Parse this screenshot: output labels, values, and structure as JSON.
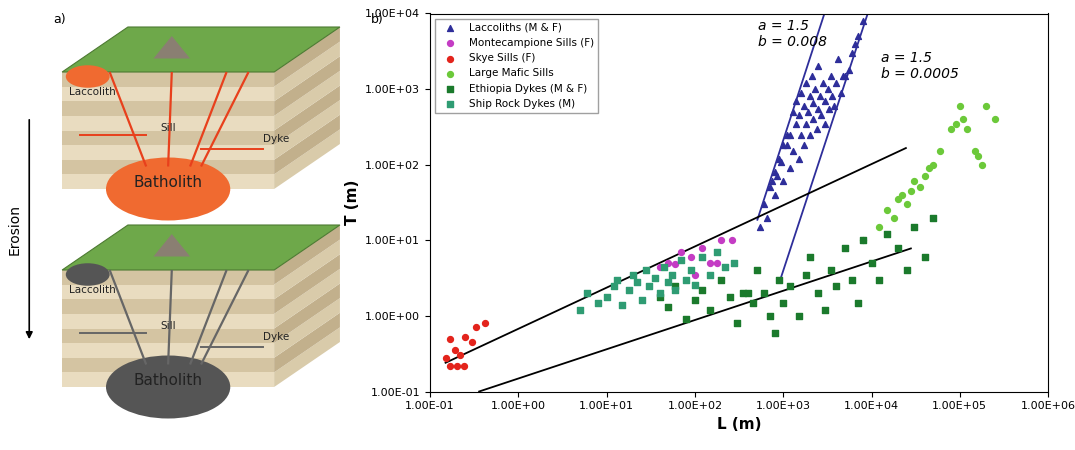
{
  "diagram": {
    "panel_label": "a)",
    "arrow_label": "Erosion",
    "blocks": [
      {
        "labels": [
          "Laccolith",
          "Sill",
          "Dyke",
          "Batholith"
        ]
      },
      {
        "labels": [
          "Laccolith",
          "Sill",
          "Dyke",
          "Batholith"
        ]
      }
    ]
  },
  "chart_data": {
    "type": "scatter",
    "panel_label": "b)",
    "log": true,
    "grid": false,
    "legend": "upper left",
    "x_label": "L (m)",
    "y_label": "T (m)",
    "xlim": [
      0.1,
      1000000
    ],
    "ylim": [
      0.1,
      10000
    ],
    "xticks": [
      {
        "value": 0.1,
        "label": "1.00E-01"
      },
      {
        "value": 1,
        "label": "1.00E+00"
      },
      {
        "value": 10,
        "label": "1.00E+01"
      },
      {
        "value": 100,
        "label": "1.00E+02"
      },
      {
        "value": 1000,
        "label": "1.00E+03"
      },
      {
        "value": 10000,
        "label": "1.00E+04"
      },
      {
        "value": 100000,
        "label": "1.00E+05"
      },
      {
        "value": 1000000,
        "label": "1.00E+06"
      }
    ],
    "yticks": [
      {
        "value": 0.1,
        "label": "1.00E-01"
      },
      {
        "value": 1,
        "label": "1.00E+00"
      },
      {
        "value": 10,
        "label": "1.00E+01"
      },
      {
        "value": 100,
        "label": "1.00E+02"
      },
      {
        "value": 1000,
        "label": "1.00E+03"
      },
      {
        "value": 10000,
        "label": "1.00E+04"
      }
    ],
    "annotations": [
      {
        "lines": [
          "a = 1.5",
          "b = 0.008"
        ]
      },
      {
        "lines": [
          "a = 1.5",
          "b = 0.0005"
        ]
      }
    ],
    "series": [
      {
        "name": "Laccoliths (M & F)",
        "color": "#2e2e9a",
        "marker": "triangle",
        "x": [
          550,
          600,
          650,
          700,
          750,
          800,
          800,
          850,
          900,
          950,
          1000,
          1000,
          1100,
          1100,
          1200,
          1200,
          1300,
          1300,
          1400,
          1400,
          1500,
          1500,
          1600,
          1600,
          1700,
          1700,
          1800,
          1800,
          1900,
          2000,
          2000,
          2100,
          2200,
          2200,
          2300,
          2400,
          2500,
          2500,
          2600,
          2700,
          2800,
          3000,
          3000,
          3200,
          3300,
          3500,
          3600,
          3800,
          4000,
          4200,
          4500,
          4800,
          5000,
          5500,
          6000,
          6500,
          7000,
          8000
        ],
        "values": [
          15,
          30,
          20,
          50,
          60,
          40,
          80,
          70,
          120,
          110,
          60,
          180,
          180,
          250,
          90,
          250,
          500,
          150,
          350,
          700,
          120,
          450,
          250,
          900,
          600,
          180,
          350,
          1200,
          500,
          250,
          800,
          1500,
          400,
          650,
          1000,
          300,
          550,
          2000,
          800,
          450,
          1200,
          700,
          350,
          1000,
          550,
          1500,
          800,
          600,
          1200,
          2500,
          900,
          1500,
          1500,
          1800,
          3000,
          4000,
          5000,
          8000
        ]
      },
      {
        "name": "Montecampione Sills (F)",
        "color": "#c43cc4",
        "marker": "circle",
        "x": [
          40,
          50,
          60,
          70,
          90,
          100,
          120,
          150,
          180,
          200,
          260
        ],
        "values": [
          4.5,
          5,
          4.8,
          7,
          6,
          3.5,
          8,
          5,
          5,
          10,
          10
        ]
      },
      {
        "name": "Skye Sills (F)",
        "color": "#e3241c",
        "marker": "circle",
        "x": [
          0.15,
          0.17,
          0.17,
          0.19,
          0.2,
          0.22,
          0.24,
          0.25,
          0.3,
          0.33,
          0.42
        ],
        "values": [
          0.28,
          0.22,
          0.5,
          0.35,
          0.22,
          0.3,
          0.22,
          0.52,
          0.45,
          0.72,
          0.8
        ]
      },
      {
        "name": "Large Mafic Sills",
        "color": "#6cc93a",
        "marker": "circle",
        "x": [
          8000,
          12000,
          15000,
          18000,
          20000,
          22000,
          25000,
          28000,
          30000,
          35000,
          40000,
          45000,
          50000,
          60000,
          80000,
          90000,
          100000,
          110000,
          120000,
          150000,
          160000,
          180000,
          200000,
          250000
        ],
        "values": [
          10,
          15,
          25,
          20,
          35,
          40,
          30,
          45,
          60,
          50,
          70,
          90,
          100,
          150,
          300,
          350,
          600,
          400,
          300,
          150,
          130,
          100,
          600,
          400
        ]
      },
      {
        "name": "Ethiopia Dykes (M & F)",
        "color": "#1b7a2c",
        "marker": "square",
        "x": [
          40,
          50,
          60,
          80,
          100,
          120,
          150,
          200,
          250,
          300,
          350,
          400,
          450,
          500,
          600,
          700,
          800,
          900,
          1000,
          1200,
          1500,
          1800,
          2000,
          2500,
          3000,
          3500,
          4000,
          5000,
          6000,
          7000,
          8000,
          10000,
          12000,
          15000,
          20000,
          25000,
          30000,
          40000,
          50000
        ],
        "values": [
          1.8,
          1.3,
          2.5,
          0.9,
          1.6,
          2.2,
          1.2,
          3,
          1.8,
          0.8,
          2,
          2,
          1.5,
          4,
          2,
          1,
          0.6,
          3,
          1.5,
          2.5,
          1,
          3.5,
          6,
          2,
          1.2,
          4,
          2.5,
          8,
          3,
          1.5,
          10,
          5,
          3,
          12,
          8,
          4,
          15,
          6,
          20
        ]
      },
      {
        "name": "Ship Rock Dykes (M)",
        "color": "#2f9c73",
        "marker": "square",
        "x": [
          5,
          6,
          8,
          10,
          12,
          13,
          15,
          18,
          20,
          22,
          25,
          28,
          30,
          35,
          40,
          45,
          50,
          55,
          60,
          70,
          80,
          90,
          100,
          120,
          150,
          180,
          220,
          280
        ],
        "values": [
          1.2,
          2,
          1.5,
          1.8,
          2.5,
          3,
          1.4,
          2.2,
          3.5,
          2.8,
          1.6,
          4,
          2.5,
          3.2,
          2,
          4.5,
          2.8,
          3.5,
          2.2,
          5.5,
          3,
          4,
          2.6,
          6,
          3.5,
          7,
          4.5,
          5
        ]
      },
      {
        "type": "line",
        "color": "#2e2e9a",
        "line_style": "solid",
        "x": [
          510,
          2930
        ],
        "values": [
          18.7,
          10000
        ]
      },
      {
        "type": "line",
        "color": "#2e2e9a",
        "line_style": "solid",
        "x": [
          950,
          9060
        ],
        "values": [
          3.3,
          10000
        ]
      },
      {
        "type": "line",
        "color": "#000000",
        "line_style": "solid",
        "x": [
          0.15,
          24500
        ],
        "values": [
          0.24,
          166
        ]
      },
      {
        "type": "line",
        "color": "#000000",
        "line_style": "solid",
        "x": [
          0.36,
          27900
        ],
        "values": [
          0.1,
          7.8
        ]
      }
    ]
  }
}
